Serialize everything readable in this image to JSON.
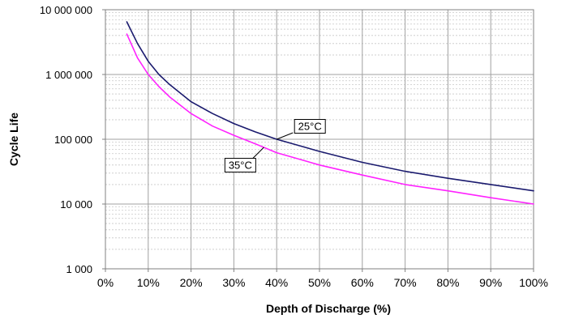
{
  "chart_data": {
    "type": "line",
    "title": "",
    "xlabel": "Depth of Discharge (%)",
    "ylabel": "Cycle Life",
    "xscale": "linear",
    "yscale": "log",
    "xlim": [
      0,
      100
    ],
    "ylim": [
      1000,
      10000000
    ],
    "grid": true,
    "legend": "none",
    "x_ticks": [
      {
        "value": 0,
        "label": "0%"
      },
      {
        "value": 10,
        "label": "10%"
      },
      {
        "value": 20,
        "label": "20%"
      },
      {
        "value": 30,
        "label": "30%"
      },
      {
        "value": 40,
        "label": "40%"
      },
      {
        "value": 50,
        "label": "50%"
      },
      {
        "value": 60,
        "label": "60%"
      },
      {
        "value": 70,
        "label": "70%"
      },
      {
        "value": 80,
        "label": "80%"
      },
      {
        "value": 90,
        "label": "90%"
      },
      {
        "value": 100,
        "label": "100%"
      }
    ],
    "y_ticks": [
      {
        "value": 1000,
        "label": "1 000"
      },
      {
        "value": 10000,
        "label": "10 000"
      },
      {
        "value": 100000,
        "label": "100 000"
      },
      {
        "value": 1000000,
        "label": "1 000 000"
      },
      {
        "value": 10000000,
        "label": "10 000 000"
      }
    ],
    "series": [
      {
        "name": "25°C",
        "color": "#1a1a6e",
        "x": [
          5,
          7.5,
          10,
          12.5,
          15,
          20,
          25,
          30,
          35,
          40,
          50,
          60,
          70,
          80,
          90,
          100
        ],
        "y": [
          6500000,
          3000000,
          1600000,
          1000000,
          700000,
          380000,
          250000,
          175000,
          130000,
          100000,
          65000,
          44000,
          32000,
          25000,
          20000,
          16000
        ]
      },
      {
        "name": "35°C",
        "color": "#ff22ff",
        "x": [
          5,
          7.5,
          10,
          12.5,
          15,
          20,
          25,
          30,
          35,
          40,
          50,
          60,
          70,
          80,
          90,
          100
        ],
        "y": [
          4200000,
          1800000,
          1000000,
          650000,
          450000,
          250000,
          160000,
          115000,
          85000,
          62000,
          40000,
          28000,
          20000,
          16000,
          12500,
          10000
        ]
      }
    ],
    "annotations": [
      {
        "text": "25°C",
        "series": "25°C",
        "x": 40
      },
      {
        "text": "35°C",
        "series": "35°C",
        "x": 37
      }
    ]
  }
}
